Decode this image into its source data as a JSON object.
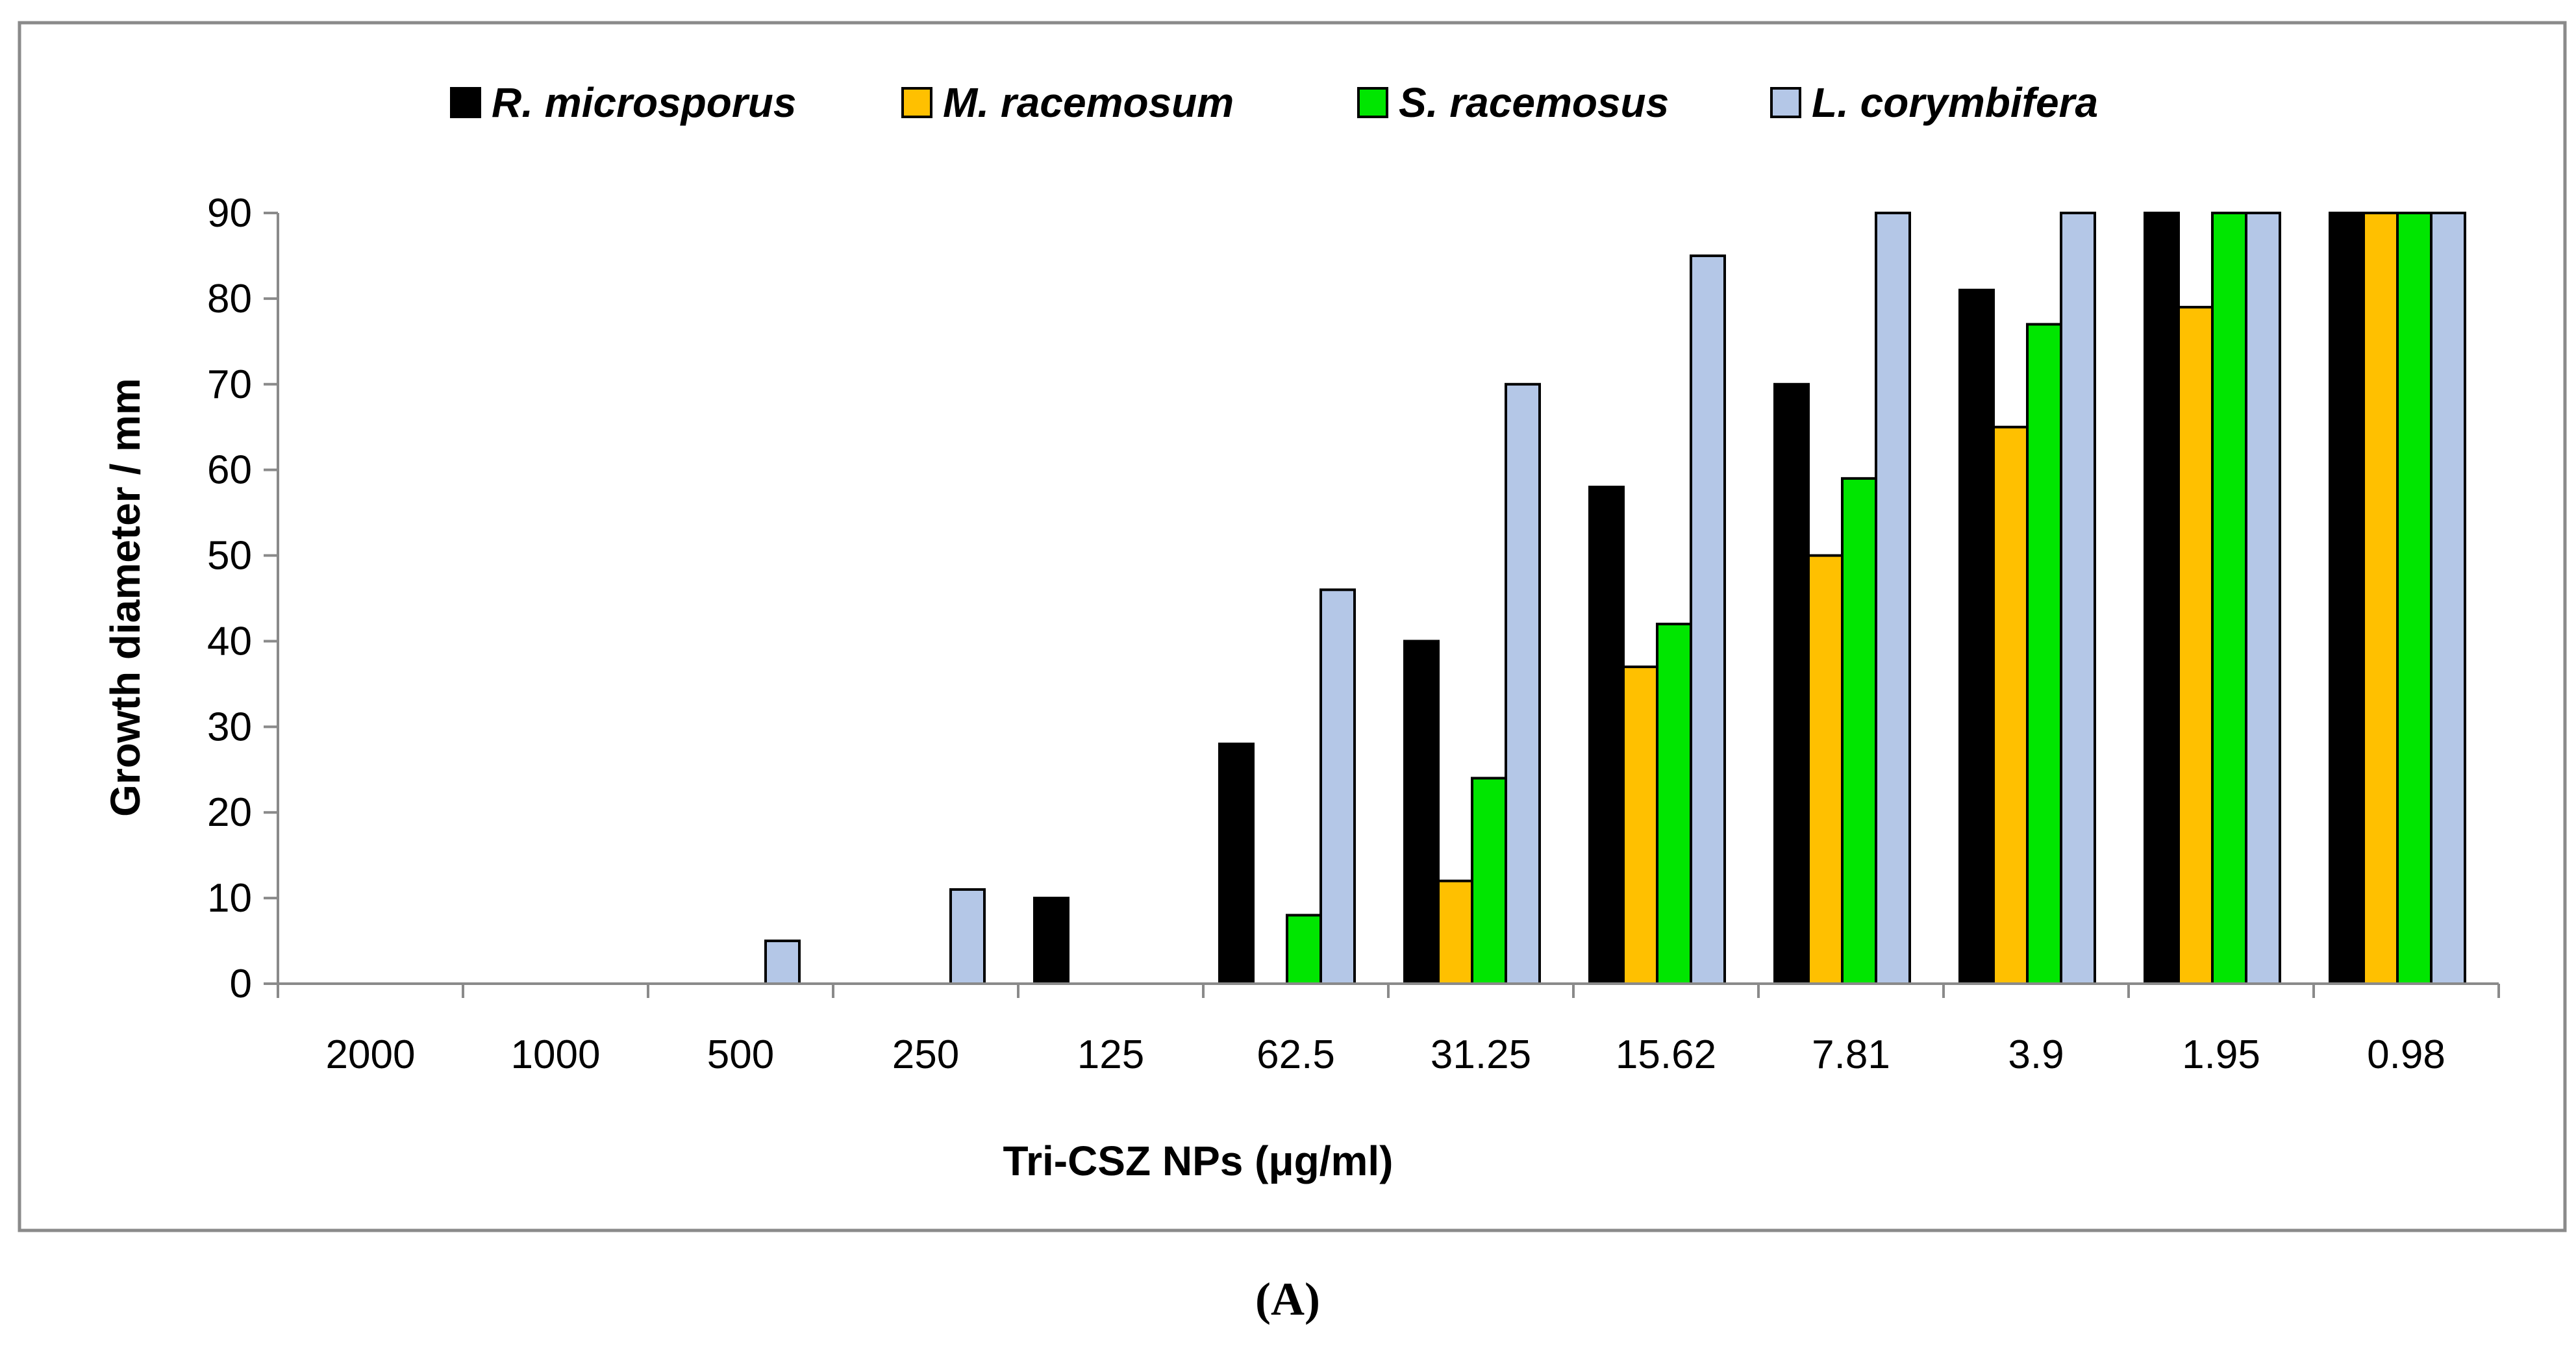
{
  "chart_data": {
    "type": "bar",
    "title": "",
    "xlabel": "Tri-CSZ NPs (μg/ml)",
    "ylabel": "Growth diameter / mm",
    "ylim": [
      0,
      90
    ],
    "yticks": [
      0,
      10,
      20,
      30,
      40,
      50,
      60,
      70,
      80,
      90
    ],
    "grid": false,
    "legend_position": "top",
    "categories": [
      "2000",
      "1000",
      "500",
      "250",
      "125",
      "62.5",
      "31.25",
      "15.62",
      "7.81",
      "3.9",
      "1.95",
      "0.98"
    ],
    "series": [
      {
        "name": "R. microsporus",
        "color": "#000000",
        "values": [
          0,
          0,
          0,
          0,
          10,
          28,
          40,
          58,
          70,
          81,
          90,
          90
        ]
      },
      {
        "name": "M. racemosum",
        "color": "#FFC000",
        "values": [
          0,
          0,
          0,
          0,
          0,
          0,
          12,
          37,
          50,
          65,
          79,
          90
        ]
      },
      {
        "name": "S. racemosus",
        "color": "#00E600",
        "values": [
          0,
          0,
          0,
          0,
          0,
          8,
          24,
          42,
          59,
          77,
          90,
          90
        ]
      },
      {
        "name": "L. corymbifera",
        "color": "#B4C7E7",
        "values": [
          0,
          0,
          5,
          11,
          0,
          46,
          70,
          85,
          90,
          90,
          90,
          90
        ]
      }
    ],
    "panel_label": "(A)"
  }
}
